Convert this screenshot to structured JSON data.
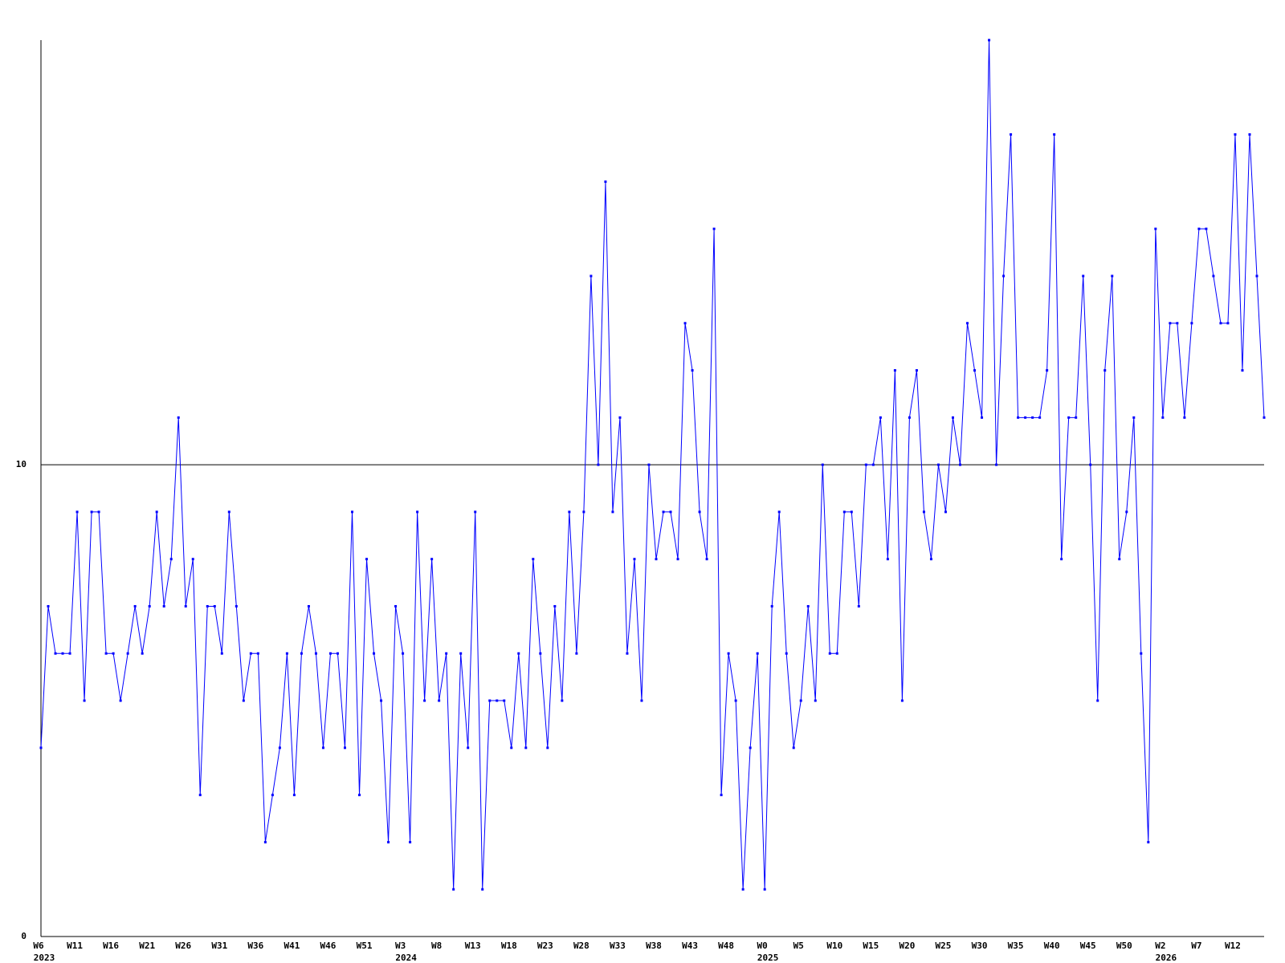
{
  "chart_data": {
    "type": "line",
    "categories": [
      "W6",
      null,
      null,
      null,
      null,
      "W11",
      null,
      null,
      null,
      null,
      "W16",
      null,
      null,
      null,
      null,
      "W21",
      null,
      null,
      null,
      null,
      "W26",
      null,
      null,
      null,
      null,
      "W31",
      null,
      null,
      null,
      null,
      "W36",
      null,
      null,
      null,
      null,
      "W41",
      null,
      null,
      null,
      null,
      "W46",
      null,
      null,
      null,
      null,
      "W51",
      null,
      null,
      null,
      null,
      "W3",
      null,
      null,
      null,
      null,
      "W8",
      null,
      null,
      null,
      null,
      "W13",
      null,
      null,
      null,
      null,
      "W18",
      null,
      null,
      null,
      null,
      "W23",
      null,
      null,
      null,
      null,
      "W28",
      null,
      null,
      null,
      null,
      "W33",
      null,
      null,
      null,
      null,
      "W38",
      null,
      null,
      null,
      null,
      "W43",
      null,
      null,
      null,
      null,
      "W48",
      null,
      null,
      null,
      null,
      "W0",
      null,
      null,
      null,
      null,
      "W5",
      null,
      null,
      null,
      null,
      "W10",
      null,
      null,
      null,
      null,
      "W15",
      null,
      null,
      null,
      null,
      "W20",
      null,
      null,
      null,
      null,
      "W25",
      null,
      null,
      null,
      null,
      "W30",
      null,
      null,
      null,
      null,
      "W35",
      null,
      null,
      null,
      null,
      "W40",
      null,
      null,
      null,
      null,
      "W45",
      null,
      null,
      null,
      null,
      "W50",
      null,
      null,
      null,
      null,
      "W2",
      null,
      null,
      null,
      null,
      "W7",
      null,
      null,
      null,
      null,
      "W12",
      null,
      null,
      null,
      null
    ],
    "year_labels": [
      "2023",
      null,
      null,
      null,
      null,
      null,
      null,
      null,
      null,
      null,
      null,
      null,
      null,
      null,
      null,
      null,
      null,
      null,
      null,
      null,
      null,
      null,
      null,
      null,
      null,
      null,
      null,
      null,
      null,
      null,
      null,
      null,
      null,
      null,
      null,
      null,
      null,
      null,
      null,
      null,
      null,
      null,
      null,
      null,
      null,
      null,
      null,
      null,
      null,
      null,
      "2024",
      null,
      null,
      null,
      null,
      null,
      null,
      null,
      null,
      null,
      null,
      null,
      null,
      null,
      null,
      null,
      null,
      null,
      null,
      null,
      null,
      null,
      null,
      null,
      null,
      null,
      null,
      null,
      null,
      null,
      null,
      null,
      null,
      null,
      null,
      null,
      null,
      null,
      null,
      null,
      null,
      null,
      null,
      null,
      null,
      null,
      null,
      null,
      null,
      null,
      "2025",
      null,
      null,
      null,
      null,
      null,
      null,
      null,
      null,
      null,
      null,
      null,
      null,
      null,
      null,
      null,
      null,
      null,
      null,
      null,
      null,
      null,
      null,
      null,
      null,
      null,
      null,
      null,
      null,
      null,
      null,
      null,
      null,
      null,
      null,
      null,
      null,
      null,
      null,
      null,
      null,
      null,
      null,
      null,
      null,
      null,
      null,
      null,
      null,
      null,
      null,
      null,
      null,
      null,
      null,
      "2026",
      null,
      null,
      null,
      null,
      null,
      null,
      null,
      null,
      null,
      null,
      null,
      null,
      null,
      null
    ],
    "values": [
      4,
      7,
      6,
      6,
      6,
      9,
      5,
      9,
      9,
      6,
      6,
      5,
      6,
      7,
      6,
      7,
      9,
      7,
      8,
      11,
      7,
      8,
      3,
      7,
      7,
      6,
      9,
      7,
      5,
      6,
      6,
      2,
      3,
      4,
      6,
      3,
      6,
      7,
      6,
      4,
      6,
      6,
      4,
      9,
      3,
      8,
      6,
      5,
      2,
      7,
      6,
      2,
      9,
      5,
      8,
      5,
      6,
      1,
      6,
      4,
      9,
      1,
      5,
      5,
      5,
      4,
      6,
      4,
      8,
      6,
      4,
      7,
      5,
      9,
      6,
      9,
      14,
      10,
      16,
      9,
      11,
      6,
      8,
      5,
      10,
      8,
      9,
      9,
      8,
      13,
      12,
      9,
      8,
      15,
      3,
      6,
      5,
      1,
      4,
      6,
      1,
      7,
      9,
      6,
      4,
      5,
      7,
      5,
      10,
      6,
      6,
      9,
      9,
      7,
      10,
      10,
      11,
      8,
      12,
      5,
      11,
      12,
      9,
      8,
      10,
      9,
      11,
      10,
      13,
      12,
      11,
      19,
      10,
      14,
      17,
      11,
      11,
      11,
      11,
      12,
      17,
      8,
      11,
      11,
      14,
      10,
      5,
      12,
      14,
      8,
      9,
      11,
      6,
      2,
      15,
      11,
      13,
      13,
      11,
      13,
      15,
      15,
      14,
      13,
      13,
      17,
      12,
      17,
      14,
      11
    ],
    "color": "#0000ff",
    "ylim": [
      0,
      19
    ],
    "yticks": [
      0,
      10
    ],
    "grid": true
  }
}
